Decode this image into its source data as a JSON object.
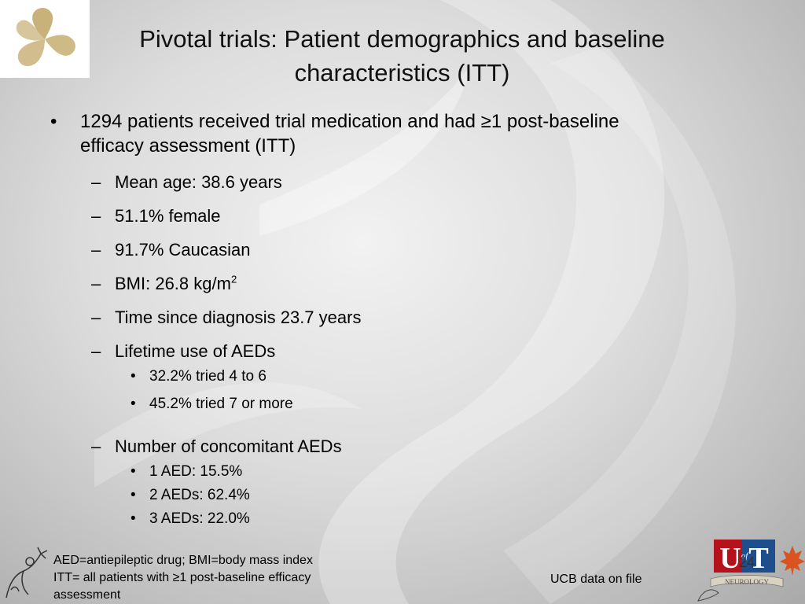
{
  "slide": {
    "title_line1": "Pivotal trials: Patient demographics and baseline",
    "title_line2": "characteristics (ITT)",
    "main_bullet_line1": "1294 patients received trial medication and had ≥1 post-baseline",
    "main_bullet_line2": "efficacy assessment (ITT)",
    "sub_items": [
      "Mean age: 38.6 years",
      "51.1% female",
      "91.7% Caucasian",
      "BMI: 26.8 kg/m",
      "Time since diagnosis 23.7 years",
      "Lifetime use of AEDs",
      "Number of concomitant AEDs"
    ],
    "bmi_superscript": "2",
    "lifetime_aed_items": [
      "32.2% tried 4 to 6",
      "45.2% tried 7 or more"
    ],
    "concomitant_aed_items": [
      "1 AED: 15.5%",
      "2 AEDs: 62.4%",
      "3 AEDs: 22.0%"
    ],
    "footnote_line1": "AED=antiepileptic drug; BMI=body mass index",
    "footnote_line2": "ITT= all patients with ≥1 post-baseline efficacy",
    "footnote_line3": "assessment",
    "source": "UCB data on file",
    "page_number": "24",
    "bullet_l1": "•",
    "bullet_l2": "–",
    "bullet_l3": "•"
  },
  "ut_logo": {
    "letters": "UT",
    "small": "of",
    "label": "NEUROLOGY"
  },
  "colors": {
    "logo_gold": "#c9b27a",
    "ut_red": "#b5121b",
    "ut_blue": "#1f4e8c",
    "leaf_red": "#d9541e"
  },
  "icons": {
    "corner_logo": "gold-swirl-leaf-icon",
    "foot_art": "line-art-figure-icon",
    "leaf": "maple-leaf-icon"
  }
}
